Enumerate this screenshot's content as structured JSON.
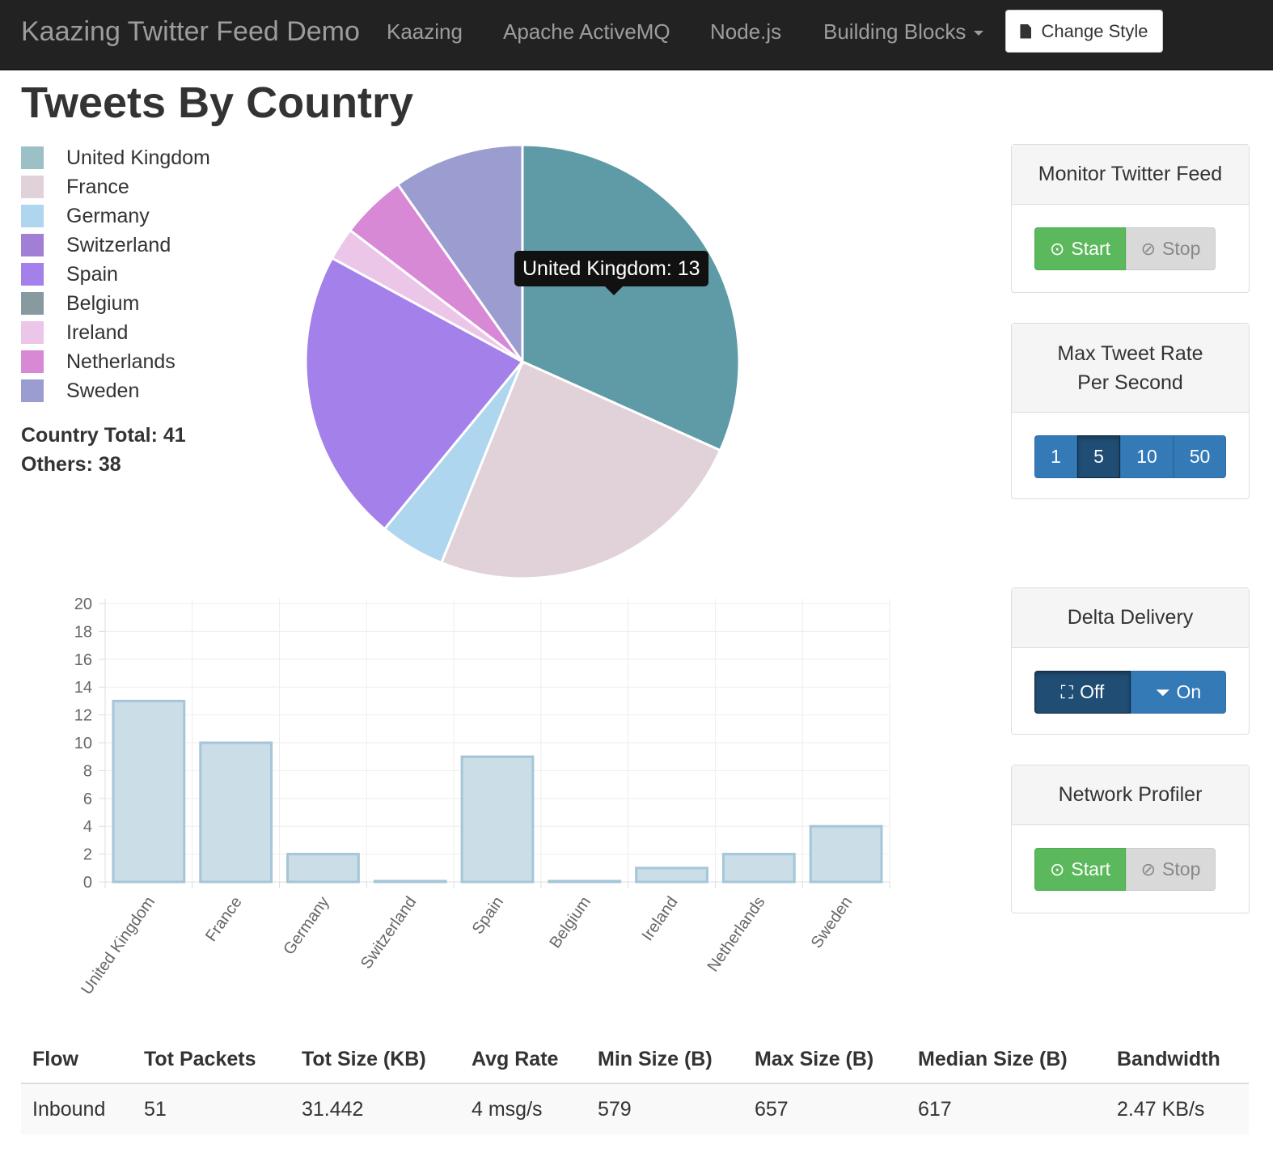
{
  "navbar": {
    "brand": "Kaazing Twitter Feed Demo",
    "links": [
      "Kaazing",
      "Apache ActiveMQ",
      "Node.js",
      "Building Blocks"
    ],
    "change_style": "Change Style"
  },
  "page": {
    "title": "Tweets By Country"
  },
  "legend": [
    {
      "label": "United Kingdom",
      "color": "#9bc1c7"
    },
    {
      "label": "France",
      "color": "#e0d2d8"
    },
    {
      "label": "Germany",
      "color": "#aed6ee"
    },
    {
      "label": "Switzerland",
      "color": "#a07fd4"
    },
    {
      "label": "Spain",
      "color": "#a480ea"
    },
    {
      "label": "Belgium",
      "color": "#869a9f"
    },
    {
      "label": "Ireland",
      "color": "#ebc6e8"
    },
    {
      "label": "Netherlands",
      "color": "#d889d6"
    },
    {
      "label": "Sweden",
      "color": "#9b9ccf"
    }
  ],
  "totals": {
    "country_total": "Country Total: 41",
    "others": "Others: 38"
  },
  "tooltip": {
    "text": "United Kingdom: 13"
  },
  "chart_data": [
    {
      "type": "pie",
      "categories": [
        "United Kingdom",
        "France",
        "Germany",
        "Switzerland",
        "Spain",
        "Belgium",
        "Ireland",
        "Netherlands",
        "Sweden"
      ],
      "values": [
        13,
        10,
        2,
        0,
        9,
        0,
        1,
        2,
        4
      ],
      "colors": [
        "#5e9ba6",
        "#e0d2d8",
        "#aed6ee",
        "#a07fd4",
        "#a480ea",
        "#869a9f",
        "#ebc6e8",
        "#d889d6",
        "#9b9ccf"
      ]
    },
    {
      "type": "bar",
      "categories": [
        "United Kingdom",
        "France",
        "Germany",
        "Switzerland",
        "Spain",
        "Belgium",
        "Ireland",
        "Netherlands",
        "Sweden"
      ],
      "values": [
        13,
        10,
        2,
        0,
        9,
        0,
        1,
        2,
        4
      ],
      "ylim": [
        0,
        20
      ],
      "yticks": [
        0,
        2,
        4,
        6,
        8,
        10,
        12,
        14,
        16,
        18,
        20
      ],
      "grid": true,
      "bar_fill": "#cbdde7",
      "bar_stroke": "#a4c6d8"
    }
  ],
  "panels": {
    "monitor": {
      "title": "Monitor Twitter Feed",
      "start": "Start",
      "stop": "Stop"
    },
    "rate": {
      "title_line1": "Max Tweet Rate",
      "title_line2": "Per Second",
      "options": [
        "1",
        "5",
        "10",
        "50"
      ],
      "selected": "5"
    },
    "delta": {
      "title": "Delta Delivery",
      "off": "Off",
      "on": "On",
      "selected": "Off"
    },
    "profiler": {
      "title": "Network Profiler",
      "start": "Start",
      "stop": "Stop"
    }
  },
  "stats": {
    "headers": [
      "Flow",
      "Tot Packets",
      "Tot Size (KB)",
      "Avg Rate",
      "Min Size (B)",
      "Max Size (B)",
      "Median Size (B)",
      "Bandwidth"
    ],
    "rows": [
      [
        "Inbound",
        "51",
        "31.442",
        "4 msg/s",
        "579",
        "657",
        "617",
        "2.47 KB/s"
      ]
    ]
  }
}
